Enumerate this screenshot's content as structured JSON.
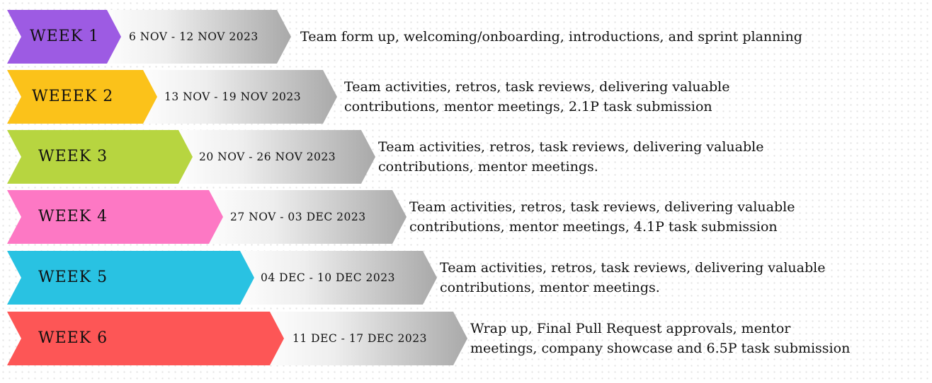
{
  "weeks": [
    {
      "label": "WEEK 1",
      "dates": "6 NOV - 12 NOV 2023",
      "color": "#9d5be3",
      "description": [
        "Team form up, welcoming/onboarding, introductions, and sprint planning"
      ]
    },
    {
      "label": "WEEEK 2",
      "dates": "13 NOV - 19 NOV 2023",
      "color": "#fbc21a",
      "description": [
        "Team activities, retros, task reviews, delivering valuable",
        " contributions, mentor meetings, 2.1P task submission"
      ]
    },
    {
      "label": "WEEK 3",
      "dates": "20 NOV - 26 NOV 2023",
      "color": "#b7d540",
      "description": [
        "Team activities, retros, task reviews, delivering valuable",
        " contributions, mentor meetings."
      ]
    },
    {
      "label": "WEEK 4",
      "dates": "27 NOV - 03 DEC 2023",
      "color": "#fd78c4",
      "description": [
        "Team activities, retros, task reviews, delivering valuable",
        " contributions, mentor meetings, 4.1P task submission"
      ]
    },
    {
      "label": "WEEK 5",
      "dates": "04 DEC - 10 DEC 2023",
      "color": "#29c2e2",
      "description": [
        "Team activities, retros, task reviews, delivering valuable",
        " contributions, mentor meetings."
      ]
    },
    {
      "label": "WEEK 6",
      "dates": "11 DEC - 17 DEC 2023",
      "color": "#fd5656",
      "description": [
        "Wrap up, Final Pull Request approvals, mentor",
        "meetings, company showcase and 6.5P task submission"
      ]
    }
  ]
}
